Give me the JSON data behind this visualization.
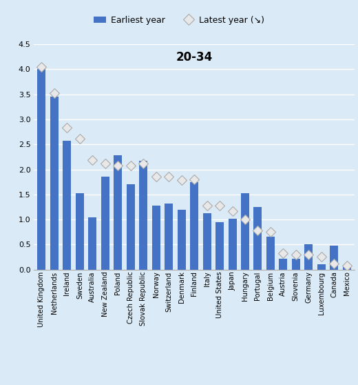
{
  "title": "20-34",
  "categories": [
    "United Kingdom",
    "Netherlands",
    "Ireland",
    "Sweden",
    "Australia",
    "New Zealand",
    "Poland",
    "Czech Republic",
    "Slovak Republic",
    "Norway",
    "Switzerland",
    "Denmark",
    "Finland",
    "Italy",
    "United States",
    "Japan",
    "Hungary",
    "Portugal",
    "Belgium",
    "Austria",
    "Slovenia",
    "Germany",
    "Luxembourg",
    "Canada",
    "Mexico"
  ],
  "bar_values": [
    4.0,
    3.45,
    2.57,
    1.52,
    1.04,
    1.85,
    2.28,
    1.7,
    2.17,
    1.27,
    1.32,
    1.2,
    1.75,
    1.13,
    0.95,
    1.02,
    1.52,
    1.25,
    0.65,
    0.22,
    0.22,
    0.5,
    0.1,
    0.48,
    0.05
  ],
  "diamond_values": [
    4.05,
    3.52,
    2.83,
    2.62,
    2.18,
    2.12,
    2.08,
    2.08,
    2.12,
    1.85,
    1.85,
    1.78,
    1.8,
    1.28,
    1.27,
    1.17,
    1.0,
    0.78,
    0.75,
    0.32,
    0.3,
    0.3,
    0.25,
    0.12,
    0.08
  ],
  "bar_color": "#4472C4",
  "diamond_facecolor": "#E8E8E8",
  "diamond_edge_color": "#AAAAAA",
  "plot_bg_color": "#DAEAF6",
  "fig_bg_color": "#DAEAF6",
  "legend_bg_color": "#C8DCF0",
  "ylim": [
    0,
    4.5
  ],
  "yticks": [
    0.0,
    0.5,
    1.0,
    1.5,
    2.0,
    2.5,
    3.0,
    3.5,
    4.0,
    4.5
  ],
  "legend_label_bar": "Earliest year",
  "legend_label_diamond": "Latest year (↘)"
}
